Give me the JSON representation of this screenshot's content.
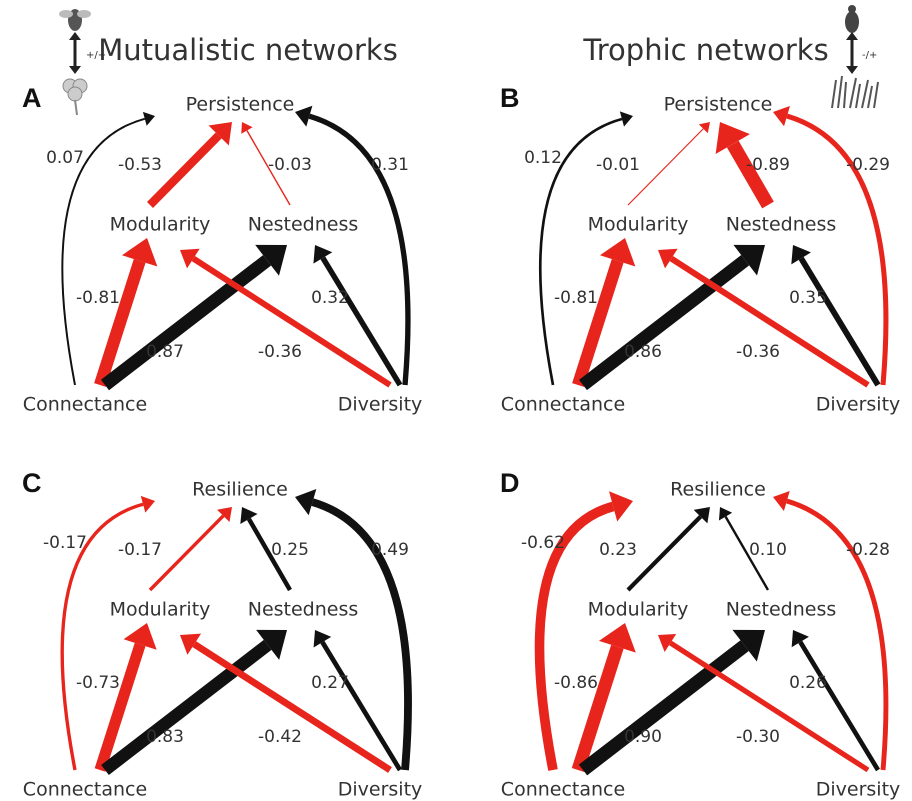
{
  "headers": [
    "Mutualistic networks",
    "Trophic networks"
  ],
  "icon_labels": [
    "+/+",
    "-/+"
  ],
  "panels": [
    {
      "letter": "A",
      "nodes": [
        "Persistence",
        "Modularity",
        "Nestedness",
        "Connectance",
        "Diversity"
      ],
      "edges": [
        "0.07",
        "-0.53",
        "-0.03",
        "0.31",
        "-0.81",
        "0.87",
        "-0.36",
        "0.32"
      ]
    },
    {
      "letter": "B",
      "nodes": [
        "Persistence",
        "Modularity",
        "Nestedness",
        "Connectance",
        "Diversity"
      ],
      "edges": [
        "0.12",
        "-0.01",
        "-0.89",
        "-0.29",
        "-0.81",
        "0.86",
        "-0.36",
        "0.35"
      ]
    },
    {
      "letter": "C",
      "nodes": [
        "Resilience",
        "Modularity",
        "Nestedness",
        "Connectance",
        "Diversity"
      ],
      "edges": [
        "-0.17",
        "-0.17",
        "0.25",
        "0.49",
        "-0.73",
        "0.83",
        "-0.42",
        "0.27"
      ]
    },
    {
      "letter": "D",
      "nodes": [
        "Resilience",
        "Modularity",
        "Nestedness",
        "Connectance",
        "Diversity"
      ],
      "edges": [
        "-0.62",
        "0.23",
        "0.10",
        "-0.28",
        "-0.86",
        "0.90",
        "-0.30",
        "0.26"
      ]
    }
  ]
}
